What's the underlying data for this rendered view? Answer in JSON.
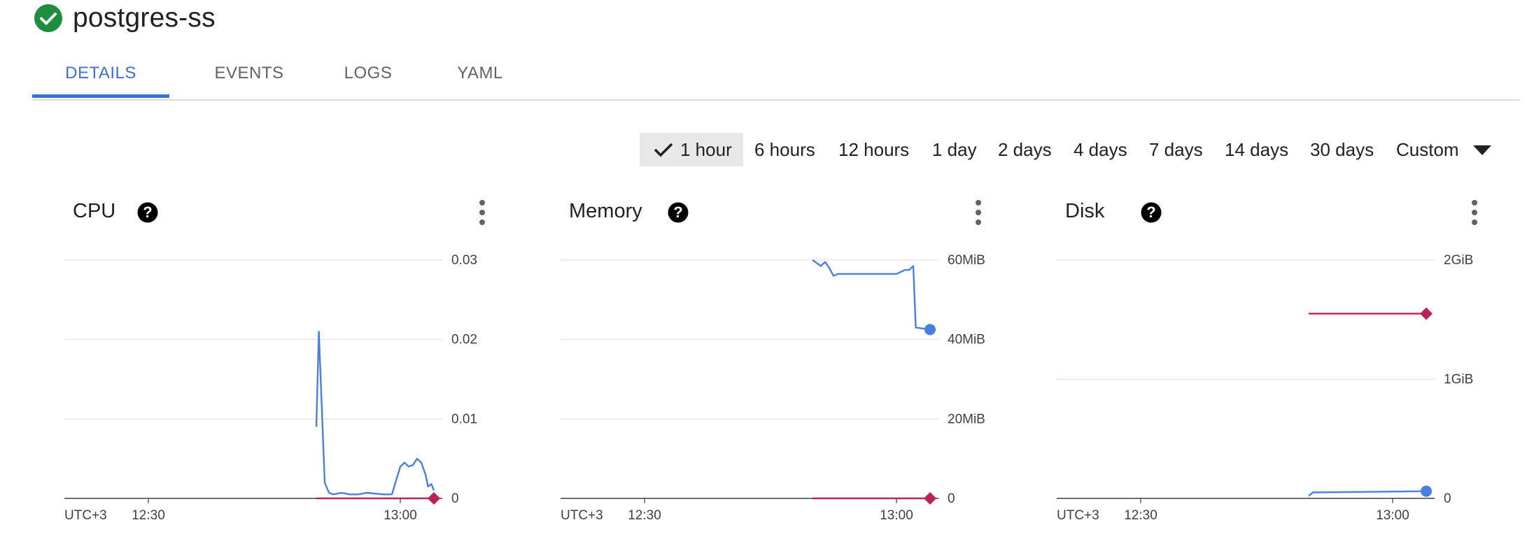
{
  "header": {
    "title": "postgres-ss",
    "status_icon": "check-circle-icon",
    "status_color": "#1e8e3e"
  },
  "tabs": [
    {
      "label": "DETAILS",
      "active": true
    },
    {
      "label": "EVENTS",
      "active": false
    },
    {
      "label": "LOGS",
      "active": false
    },
    {
      "label": "YAML",
      "active": false
    }
  ],
  "time_range": {
    "selected": "1 hour",
    "options": [
      "1 hour",
      "6 hours",
      "12 hours",
      "1 day",
      "2 days",
      "4 days",
      "7 days",
      "14 days",
      "30 days",
      "Custom"
    ],
    "check_icon": "check-icon",
    "dropdown_icon": "caret-down-icon"
  },
  "colors": {
    "usage_line": "#4a7fe0",
    "limit_line": "#b7245c",
    "gridline": "#e0e0e0",
    "axis": "#3c4043",
    "accent": "#3c6fd8"
  },
  "chart_data": [
    {
      "type": "line",
      "title": "CPU",
      "x_labels": [
        "UTC+3",
        "12:30",
        "13:00"
      ],
      "y_ticks": [
        "0.03",
        "0.02",
        "0.01",
        "0"
      ],
      "ylim": [
        0,
        0.03
      ],
      "xlim": [
        "12:20",
        "13:05"
      ],
      "grid": true,
      "series": [
        {
          "role": "usage",
          "x": [
            "12:50",
            "12:50.3",
            "12:51",
            "12:51.5",
            "12:52",
            "12:53",
            "12:54",
            "12:55",
            "12:56",
            "12:57",
            "12:58",
            "12:59",
            "13:00",
            "13:00.5",
            "13:01",
            "13:01.5",
            "13:02",
            "13:02.5",
            "13:03",
            "13:03.3",
            "13:03.7",
            "13:04"
          ],
          "values": [
            0.009,
            0.021,
            0.002,
            0.0007,
            0.0005,
            0.0007,
            0.0005,
            0.0005,
            0.0007,
            0.0006,
            0.0005,
            0.0005,
            0.004,
            0.0045,
            0.004,
            0.0042,
            0.005,
            0.0045,
            0.003,
            0.0015,
            0.0018,
            0.001
          ]
        },
        {
          "role": "limit",
          "x": [
            "12:50",
            "13:04"
          ],
          "values": [
            0,
            0
          ]
        }
      ],
      "end_markers": {
        "limit": "diamond"
      }
    },
    {
      "type": "line",
      "title": "Memory",
      "x_labels": [
        "UTC+3",
        "12:30",
        "13:00"
      ],
      "y_ticks": [
        "60MiB",
        "40MiB",
        "20MiB",
        "0"
      ],
      "ylim": [
        0,
        60
      ],
      "xlim": [
        "12:20",
        "13:05"
      ],
      "grid": true,
      "series": [
        {
          "role": "usage",
          "x": [
            "12:50",
            "12:51",
            "12:51.5",
            "12:52",
            "12:52.5",
            "12:53",
            "12:55",
            "12:58",
            "13:00",
            "13:01",
            "13:01.5",
            "13:02",
            "13:02.3",
            "13:04"
          ],
          "values": [
            60,
            58.5,
            59.5,
            58,
            56,
            56.5,
            56.5,
            56.5,
            56.5,
            57.5,
            57.5,
            58.5,
            43,
            42.5
          ]
        },
        {
          "role": "limit",
          "x": [
            "12:50",
            "13:04"
          ],
          "values": [
            0,
            0
          ]
        }
      ],
      "end_markers": {
        "usage": "circle",
        "limit": "diamond"
      }
    },
    {
      "type": "line",
      "title": "Disk",
      "x_labels": [
        "UTC+3",
        "12:30",
        "13:00"
      ],
      "y_ticks": [
        "2GiB",
        "1GiB",
        "0"
      ],
      "ylim": [
        0,
        2
      ],
      "xlim": [
        "12:20",
        "13:05"
      ],
      "grid": true,
      "series": [
        {
          "role": "usage",
          "x": [
            "12:50",
            "12:50.5",
            "13:04"
          ],
          "values": [
            0.02,
            0.05,
            0.06
          ]
        },
        {
          "role": "limit",
          "x": [
            "12:50",
            "13:04"
          ],
          "values": [
            1.55,
            1.55
          ]
        }
      ],
      "end_markers": {
        "usage": "circle",
        "limit": "diamond"
      }
    }
  ],
  "icons": {
    "help": "help-circle-icon",
    "menu": "more-vert-icon"
  }
}
